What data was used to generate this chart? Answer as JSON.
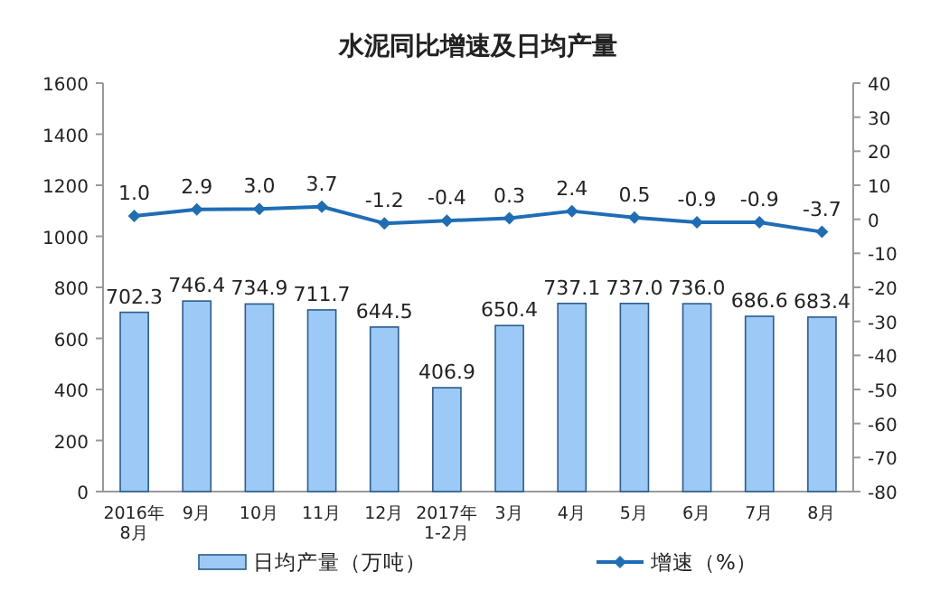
{
  "chart_data": {
    "type": "bar",
    "title": "水泥同比增速及日均产量",
    "categories": [
      "2016年\n8月",
      "9月",
      "10月",
      "11月",
      "12月",
      "2017年\n1-2月",
      "3月",
      "4月",
      "5月",
      "6月",
      "7月",
      "8月"
    ],
    "series": [
      {
        "name": "日均产量（万吨）",
        "color": "#9cc9f5",
        "values": [
          702.3,
          746.4,
          734.9,
          711.7,
          644.5,
          406.9,
          650.4,
          737.1,
          737.0,
          736.0,
          686.6,
          683.4
        ],
        "value_labels": [
          "702.3",
          "746.4",
          "734.9",
          "711.7",
          "644.5",
          "406.9",
          "650.4",
          "737.1",
          "737.0",
          "736.0",
          "686.6",
          "683.4"
        ]
      },
      {
        "name": "增速（%）",
        "type": "line",
        "axis": "y2",
        "color": "#1f6db5",
        "marker": "diamond",
        "values": [
          1.0,
          2.9,
          3.0,
          3.7,
          -1.2,
          -0.4,
          0.3,
          2.4,
          0.5,
          -0.9,
          -0.9,
          -3.7
        ],
        "value_labels": [
          "1.0",
          "2.9",
          "3.0",
          "3.7",
          "-1.2",
          "-0.4",
          "0.3",
          "2.4",
          "0.5",
          "-0.9",
          "-0.9",
          "-3.7"
        ]
      }
    ],
    "ylim": [
      0,
      1600
    ],
    "yticks": [
      0,
      200,
      400,
      600,
      800,
      1000,
      1200,
      1400,
      1600
    ],
    "y2lim": [
      -80,
      40
    ],
    "y2ticks": [
      -80,
      -70,
      -60,
      -50,
      -40,
      -30,
      -20,
      -10,
      0,
      10,
      20,
      30,
      40
    ],
    "legend": "bottom"
  }
}
